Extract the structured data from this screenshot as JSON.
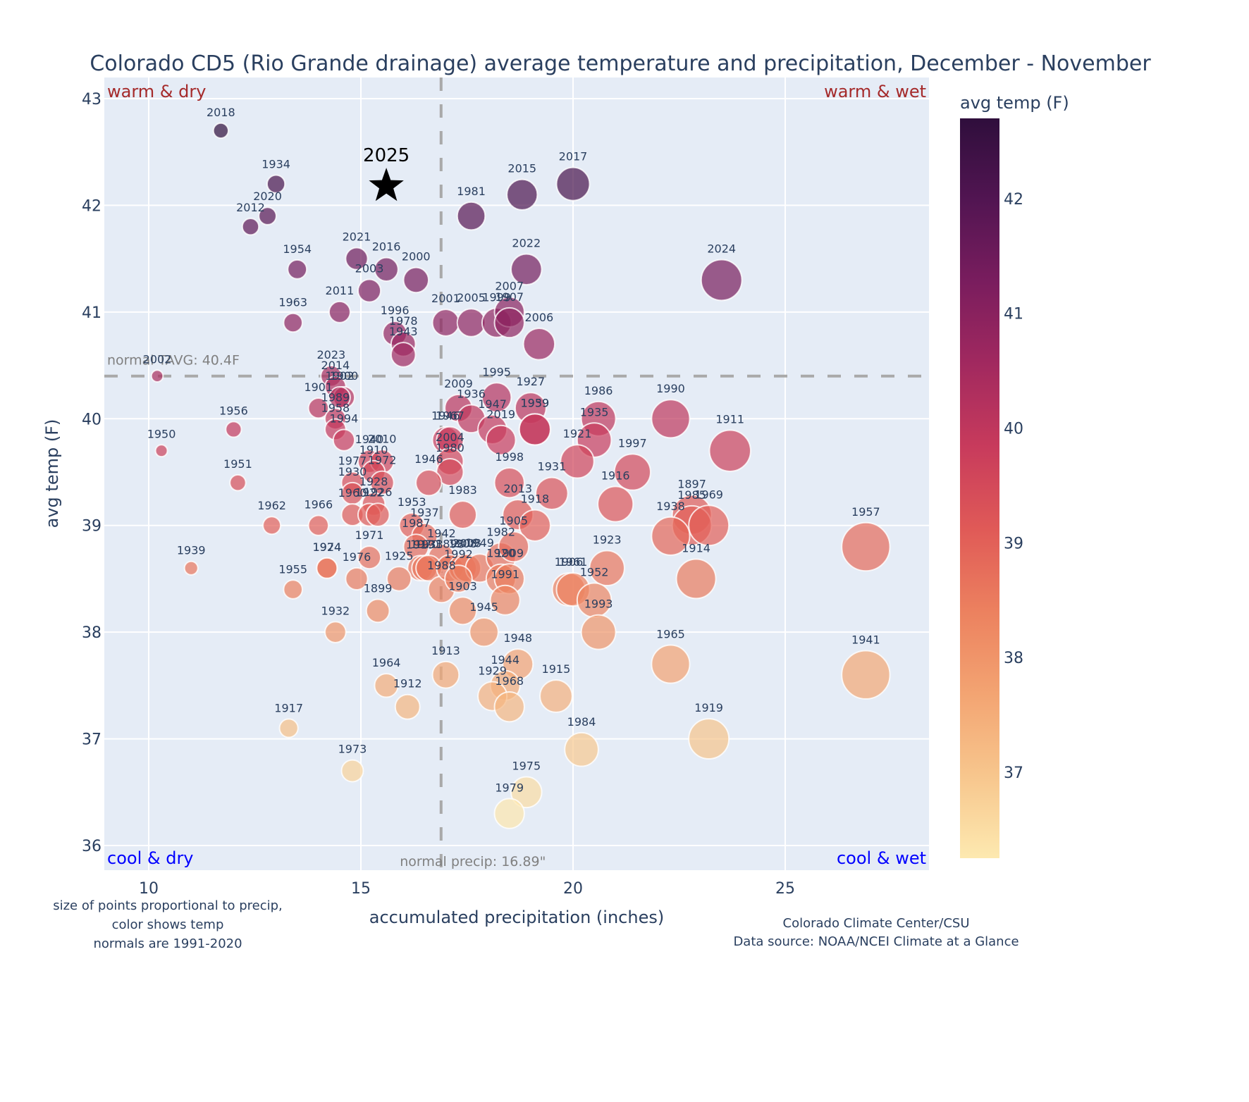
{
  "chart_data": {
    "type": "scatter",
    "title": "Colorado CD5 (Rio Grande drainage) average temperature and precipitation, December - November",
    "xlabel": "accumulated precipitation (inches)",
    "ylabel": "avg temp (F)",
    "xlim": [
      8.95,
      28.4
    ],
    "ylim": [
      35.77,
      43.2
    ],
    "xticks": [
      10,
      15,
      20,
      25
    ],
    "yticks": [
      36,
      37,
      38,
      39,
      40,
      41,
      42,
      43
    ],
    "grid": true,
    "colorbar": {
      "title": "avg temp (F)",
      "range": [
        36.25,
        42.7
      ],
      "ticks": [
        37,
        38,
        39,
        40,
        41,
        42
      ],
      "colors": [
        "#fde9b0",
        "#f7c68d",
        "#f3a472",
        "#ec815f",
        "#e05a57",
        "#c83b5c",
        "#a2295f",
        "#7a1d5e",
        "#521552",
        "#2f0e3c"
      ]
    },
    "normals": {
      "temp": 40.4,
      "temp_label": "normal TAVG: 40.4F",
      "precip": 16.89,
      "precip_label": "normal precip: 16.89\""
    },
    "quadrant_labels": {
      "top_left": "warm & dry",
      "top_right": "warm & wet",
      "bottom_left": "cool & dry",
      "bottom_right": "cool & wet"
    },
    "highlight": {
      "year": "2025",
      "x": 15.6,
      "y": 42.2,
      "marker": "star"
    },
    "points": [
      {
        "year": "2018",
        "x": 11.7,
        "y": 42.7
      },
      {
        "year": "1934",
        "x": 13.0,
        "y": 42.2
      },
      {
        "year": "2020",
        "x": 12.8,
        "y": 41.9
      },
      {
        "year": "2012",
        "x": 12.4,
        "y": 41.8
      },
      {
        "year": "1954",
        "x": 13.5,
        "y": 41.4
      },
      {
        "year": "2021",
        "x": 14.9,
        "y": 41.5
      },
      {
        "year": "2016",
        "x": 15.6,
        "y": 41.4
      },
      {
        "year": "2003",
        "x": 15.2,
        "y": 41.2
      },
      {
        "year": "2000",
        "x": 16.3,
        "y": 41.3
      },
      {
        "year": "2011",
        "x": 14.5,
        "y": 41.0
      },
      {
        "year": "1963",
        "x": 13.4,
        "y": 40.9
      },
      {
        "year": "1996",
        "x": 15.8,
        "y": 40.8
      },
      {
        "year": "1978",
        "x": 16.0,
        "y": 40.7
      },
      {
        "year": "1943",
        "x": 16.0,
        "y": 40.6
      },
      {
        "year": "1981",
        "x": 17.6,
        "y": 41.9
      },
      {
        "year": "2015",
        "x": 18.8,
        "y": 42.1
      },
      {
        "year": "2017",
        "x": 20.0,
        "y": 42.2
      },
      {
        "year": "2022",
        "x": 18.9,
        "y": 41.4
      },
      {
        "year": "2024",
        "x": 23.5,
        "y": 41.3
      },
      {
        "year": "2001",
        "x": 17.0,
        "y": 40.9
      },
      {
        "year": "2005",
        "x": 17.6,
        "y": 40.9
      },
      {
        "year": "1999",
        "x": 18.2,
        "y": 40.9
      },
      {
        "year": "2007",
        "x": 18.5,
        "y": 41.0
      },
      {
        "year": "1907",
        "x": 18.5,
        "y": 40.9
      },
      {
        "year": "2006",
        "x": 19.2,
        "y": 40.7
      },
      {
        "year": "2002",
        "x": 10.2,
        "y": 40.4
      },
      {
        "year": "2023",
        "x": 14.3,
        "y": 40.4
      },
      {
        "year": "2014",
        "x": 14.4,
        "y": 40.3
      },
      {
        "year": "1900",
        "x": 14.6,
        "y": 40.2
      },
      {
        "year": "1901",
        "x": 14.0,
        "y": 40.1
      },
      {
        "year": "1902",
        "x": 14.5,
        "y": 40.2
      },
      {
        "year": "1989",
        "x": 14.4,
        "y": 40.0
      },
      {
        "year": "1958",
        "x": 14.4,
        "y": 39.9
      },
      {
        "year": "1956",
        "x": 12.0,
        "y": 39.9
      },
      {
        "year": "1950",
        "x": 10.3,
        "y": 39.7
      },
      {
        "year": "1994",
        "x": 14.6,
        "y": 39.8
      },
      {
        "year": "1940",
        "x": 15.2,
        "y": 39.6
      },
      {
        "year": "2010",
        "x": 15.5,
        "y": 39.6
      },
      {
        "year": "1977",
        "x": 14.8,
        "y": 39.4
      },
      {
        "year": "1910",
        "x": 15.3,
        "y": 39.5
      },
      {
        "year": "1930",
        "x": 14.8,
        "y": 39.3
      },
      {
        "year": "1972",
        "x": 15.5,
        "y": 39.4
      },
      {
        "year": "1928",
        "x": 15.3,
        "y": 39.2
      },
      {
        "year": "1960",
        "x": 14.8,
        "y": 39.1
      },
      {
        "year": "1922",
        "x": 15.2,
        "y": 39.1
      },
      {
        "year": "1926",
        "x": 15.4,
        "y": 39.1
      },
      {
        "year": "1951",
        "x": 12.1,
        "y": 39.4
      },
      {
        "year": "1962",
        "x": 12.9,
        "y": 39.0
      },
      {
        "year": "1966",
        "x": 14.0,
        "y": 39.0
      },
      {
        "year": "1939",
        "x": 11.0,
        "y": 38.6
      },
      {
        "year": "1924",
        "x": 14.2,
        "y": 38.6
      },
      {
        "year": "1974",
        "x": 14.2,
        "y": 38.6
      },
      {
        "year": "1955",
        "x": 13.4,
        "y": 38.4
      },
      {
        "year": "1976",
        "x": 14.9,
        "y": 38.5
      },
      {
        "year": "1971",
        "x": 15.2,
        "y": 38.7
      },
      {
        "year": "1932",
        "x": 14.4,
        "y": 38.0
      },
      {
        "year": "1899",
        "x": 15.4,
        "y": 38.2
      },
      {
        "year": "1995",
        "x": 18.2,
        "y": 40.2
      },
      {
        "year": "2009",
        "x": 17.3,
        "y": 40.1
      },
      {
        "year": "1936",
        "x": 17.6,
        "y": 40.0
      },
      {
        "year": "1927",
        "x": 19.0,
        "y": 40.1
      },
      {
        "year": "1959",
        "x": 19.1,
        "y": 39.9
      },
      {
        "year": "1939b",
        "x": 19.1,
        "y": 39.9,
        "label": "1939"
      },
      {
        "year": "1947",
        "x": 18.1,
        "y": 39.9
      },
      {
        "year": "2019",
        "x": 18.3,
        "y": 39.8
      },
      {
        "year": "1946b",
        "x": 17.0,
        "y": 39.8,
        "label": "1946"
      },
      {
        "year": "1967",
        "x": 17.1,
        "y": 39.8
      },
      {
        "year": "2004",
        "x": 17.1,
        "y": 39.6
      },
      {
        "year": "1980",
        "x": 17.1,
        "y": 39.5
      },
      {
        "year": "1946",
        "x": 16.6,
        "y": 39.4
      },
      {
        "year": "1983",
        "x": 17.4,
        "y": 39.1
      },
      {
        "year": "1998",
        "x": 18.5,
        "y": 39.4
      },
      {
        "year": "1986",
        "x": 20.6,
        "y": 40.0
      },
      {
        "year": "1935",
        "x": 20.5,
        "y": 39.8
      },
      {
        "year": "1921",
        "x": 20.1,
        "y": 39.6
      },
      {
        "year": "1990",
        "x": 22.3,
        "y": 40.0
      },
      {
        "year": "1911",
        "x": 23.7,
        "y": 39.7
      },
      {
        "year": "1997",
        "x": 21.4,
        "y": 39.5
      },
      {
        "year": "1931",
        "x": 19.5,
        "y": 39.3
      },
      {
        "year": "1916",
        "x": 21.0,
        "y": 39.2
      },
      {
        "year": "2013",
        "x": 18.7,
        "y": 39.1
      },
      {
        "year": "1918",
        "x": 19.1,
        "y": 39.0
      },
      {
        "year": "1897",
        "x": 22.8,
        "y": 39.1
      },
      {
        "year": "1985",
        "x": 22.8,
        "y": 39.0
      },
      {
        "year": "1969",
        "x": 23.2,
        "y": 39.0
      },
      {
        "year": "1938",
        "x": 22.3,
        "y": 38.9
      },
      {
        "year": "1957",
        "x": 26.9,
        "y": 38.8
      },
      {
        "year": "1914",
        "x": 22.9,
        "y": 38.5
      },
      {
        "year": "1923",
        "x": 20.8,
        "y": 38.6
      },
      {
        "year": "1906",
        "x": 19.9,
        "y": 38.4
      },
      {
        "year": "1961",
        "x": 20.0,
        "y": 38.4
      },
      {
        "year": "1952",
        "x": 20.5,
        "y": 38.3
      },
      {
        "year": "1993",
        "x": 20.6,
        "y": 38.0
      },
      {
        "year": "1953",
        "x": 16.2,
        "y": 39.0
      },
      {
        "year": "1937",
        "x": 16.5,
        "y": 38.9
      },
      {
        "year": "1987",
        "x": 16.3,
        "y": 38.8
      },
      {
        "year": "1942",
        "x": 16.9,
        "y": 38.7
      },
      {
        "year": "1919",
        "x": 16.4,
        "y": 38.6
      },
      {
        "year": "1970",
        "x": 16.5,
        "y": 38.6
      },
      {
        "year": "1933",
        "x": 16.6,
        "y": 38.6
      },
      {
        "year": "1925",
        "x": 15.9,
        "y": 38.5
      },
      {
        "year": "1988",
        "x": 16.9,
        "y": 38.4
      },
      {
        "year": "1898",
        "x": 17.1,
        "y": 38.6
      },
      {
        "year": "1908",
        "x": 17.4,
        "y": 38.6
      },
      {
        "year": "2008",
        "x": 17.5,
        "y": 38.6
      },
      {
        "year": "1949",
        "x": 17.8,
        "y": 38.6
      },
      {
        "year": "1982",
        "x": 18.3,
        "y": 38.7
      },
      {
        "year": "1905",
        "x": 18.6,
        "y": 38.8
      },
      {
        "year": "1920",
        "x": 18.3,
        "y": 38.5
      },
      {
        "year": "1909",
        "x": 18.5,
        "y": 38.5
      },
      {
        "year": "1991",
        "x": 18.4,
        "y": 38.3
      },
      {
        "year": "1992",
        "x": 17.3,
        "y": 38.5
      },
      {
        "year": "1903",
        "x": 17.4,
        "y": 38.2
      },
      {
        "year": "1945",
        "x": 17.9,
        "y": 38.0
      },
      {
        "year": "1948",
        "x": 18.7,
        "y": 37.7
      },
      {
        "year": "1944",
        "x": 18.4,
        "y": 37.5
      },
      {
        "year": "1929",
        "x": 18.1,
        "y": 37.4
      },
      {
        "year": "1968",
        "x": 18.5,
        "y": 37.3
      },
      {
        "year": "1915",
        "x": 19.6,
        "y": 37.4
      },
      {
        "year": "1913",
        "x": 17.0,
        "y": 37.6
      },
      {
        "year": "1964",
        "x": 15.6,
        "y": 37.5
      },
      {
        "year": "1912",
        "x": 16.1,
        "y": 37.3
      },
      {
        "year": "1917",
        "x": 13.3,
        "y": 37.1
      },
      {
        "year": "1973",
        "x": 14.8,
        "y": 36.7
      },
      {
        "year": "1965",
        "x": 22.3,
        "y": 37.7
      },
      {
        "year": "1941",
        "x": 26.9,
        "y": 37.6
      },
      {
        "year": "1919b",
        "x": 23.2,
        "y": 37.0,
        "label": "1919"
      },
      {
        "year": "1984",
        "x": 20.2,
        "y": 36.9
      },
      {
        "year": "1975",
        "x": 18.9,
        "y": 36.5
      },
      {
        "year": "1979",
        "x": 18.5,
        "y": 36.3
      }
    ]
  },
  "footnotes": {
    "left": [
      "size of points proportional to precip,",
      "color shows temp",
      "normals are 1991-2020"
    ],
    "right": [
      "Colorado Climate Center/CSU",
      "Data source: NOAA/NCEI Climate at a Glance"
    ]
  }
}
